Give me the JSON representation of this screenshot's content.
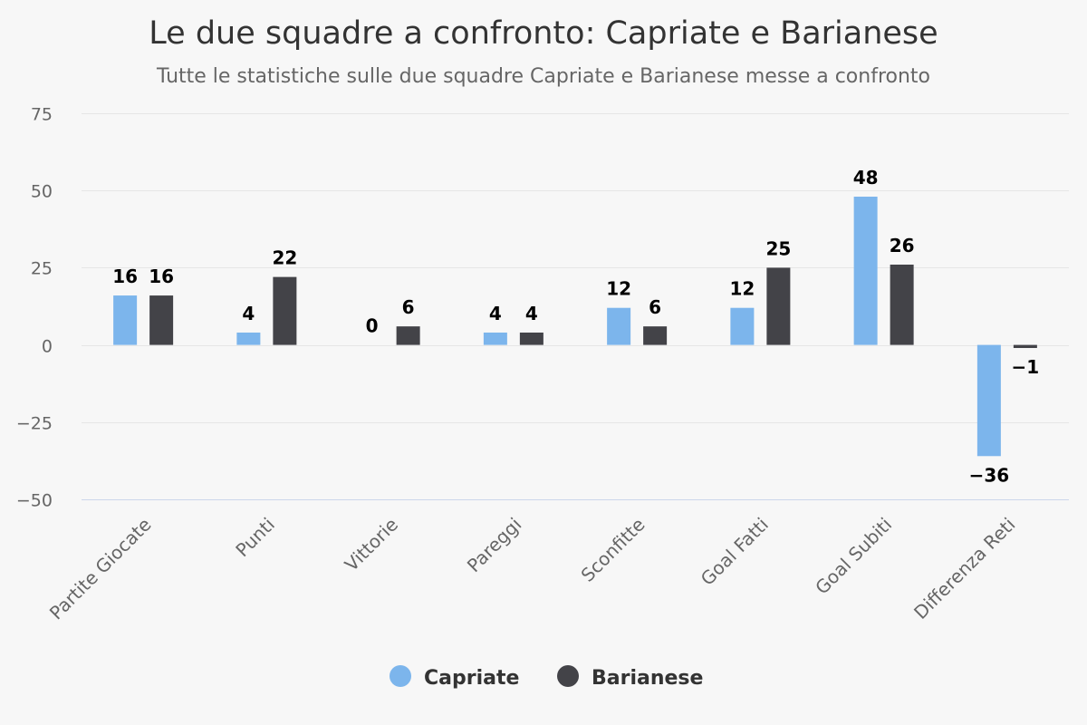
{
  "chart_data": {
    "type": "bar",
    "title": "Le due squadre a confronto: Capriate e Barianese",
    "subtitle": "Tutte le statistiche sulle due squadre Capriate e Barianese messe a confronto",
    "categories": [
      "Partite Giocate",
      "Punti",
      "Vittorie",
      "Pareggi",
      "Sconfitte",
      "Goal Fatti",
      "Goal Subiti",
      "Differenza Reti"
    ],
    "series": [
      {
        "name": "Capriate",
        "color": "#7cb5ec",
        "values": [
          16,
          4,
          0,
          4,
          12,
          12,
          48,
          -36
        ]
      },
      {
        "name": "Barianese",
        "color": "#434348",
        "values": [
          16,
          22,
          6,
          4,
          6,
          25,
          26,
          -1
        ]
      }
    ],
    "yticks": [
      75,
      50,
      25,
      0,
      -25,
      -50
    ],
    "ytick_labels": [
      "75",
      "50",
      "25",
      "0",
      "−25",
      "−50"
    ],
    "ylim": [
      -50,
      75
    ],
    "xlabel": "",
    "ylabel": "",
    "grid": true,
    "legend": "bottom-center"
  }
}
